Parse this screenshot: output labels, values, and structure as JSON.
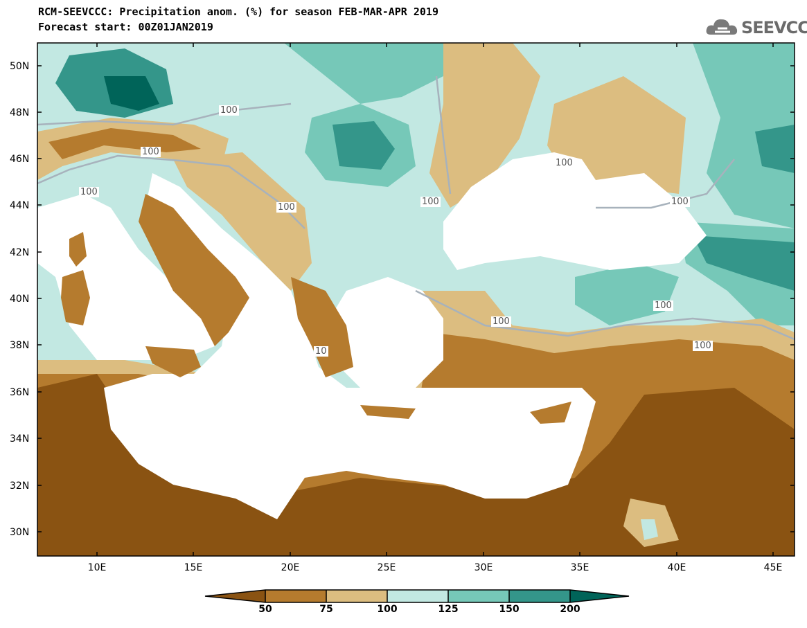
{
  "title": {
    "line1": "RCM-SEEVCCC: Precipitation anom. (%) for season FEB-MAR-APR 2019",
    "line2": "Forecast start: 00Z01JAN2019"
  },
  "logo": {
    "text": "SEEVCCC",
    "icon": "cloud-icon"
  },
  "axes": {
    "lat_labels": [
      "50N",
      "48N",
      "46N",
      "44N",
      "42N",
      "40N",
      "38N",
      "36N",
      "34N",
      "32N",
      "30N"
    ],
    "lon_labels": [
      "10E",
      "15E",
      "20E",
      "25E",
      "30E",
      "35E",
      "40E",
      "45E"
    ]
  },
  "contour_labels": [
    "100",
    "100",
    "100",
    "100",
    "100",
    "100",
    "100",
    "100",
    "100",
    "100",
    "10"
  ],
  "colorbar": {
    "labels": [
      "50",
      "75",
      "100",
      "125",
      "150",
      "200"
    ],
    "colors": [
      "#8a5312",
      "#b57b2e",
      "#dcbd80",
      "#c2e8e2",
      "#76c8b8",
      "#34968a",
      "#006459"
    ]
  },
  "map_colors": {
    "land_dry_strong": "#8a5312",
    "land_dry": "#b57b2e",
    "land_dry_light": "#dcbd80",
    "land_wet_light": "#c2e8e2",
    "land_wet": "#76c8b8",
    "land_wet_strong": "#34968a",
    "land_wet_extreme": "#006459",
    "sea": "#ffffff",
    "contour": "#a7b2bc"
  }
}
